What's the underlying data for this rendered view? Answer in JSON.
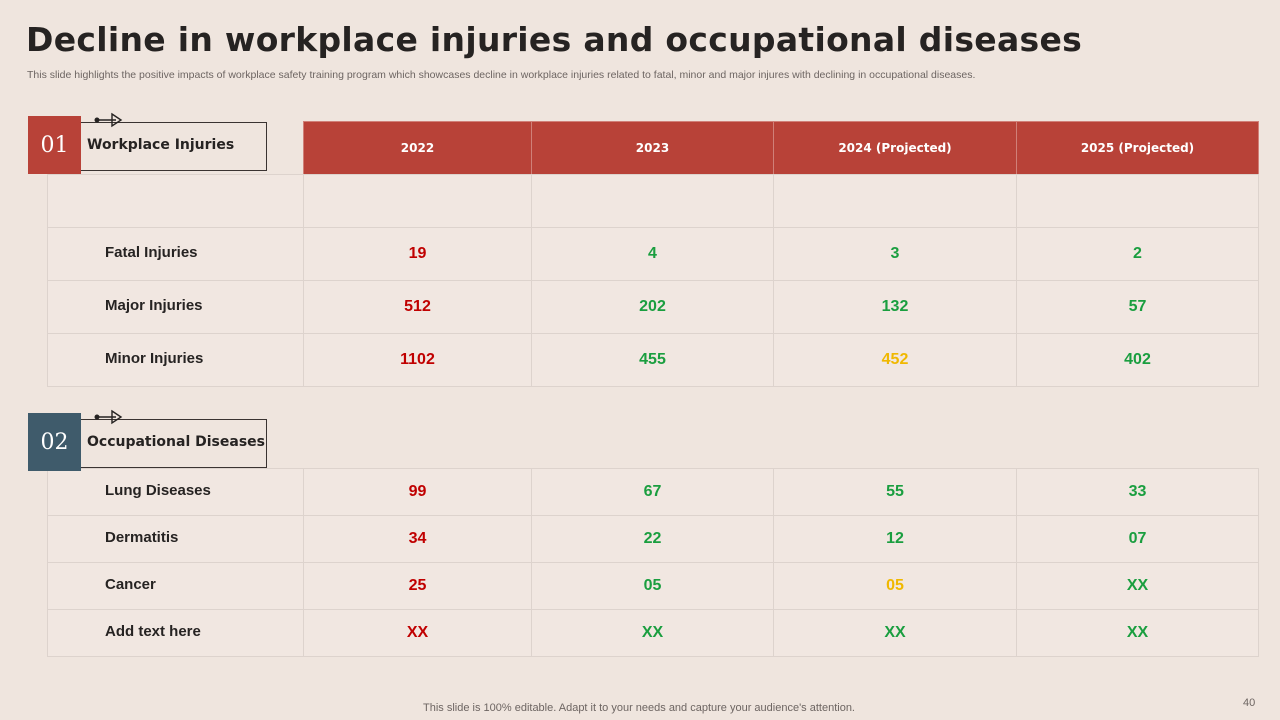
{
  "header": {
    "title": "Decline in workplace injuries and occupational diseases",
    "subtitle": "This slide highlights the positive impacts of workplace safety training program which showcases decline in workplace injuries related to fatal, minor and major injures with declining in occupational diseases."
  },
  "sections": [
    {
      "number": "01",
      "label": "Workplace Injuries",
      "badge_color": "#b84238",
      "columns": [
        "2022",
        "2023",
        "2024 (Projected)",
        "2025 (Projected)"
      ],
      "rows": [
        {
          "name": "Fatal Injuries",
          "cells": [
            "19",
            "4",
            "3",
            "2"
          ],
          "colors": [
            "#c00000",
            "#1a9e3f",
            "#1a9e3f",
            "#1a9e3f"
          ]
        },
        {
          "name": "Major Injuries",
          "cells": [
            "512",
            "202",
            "132",
            "57"
          ],
          "colors": [
            "#c00000",
            "#1a9e3f",
            "#1a9e3f",
            "#1a9e3f"
          ]
        },
        {
          "name": "Minor Injuries",
          "cells": [
            "1102",
            "455",
            "452",
            "402"
          ],
          "colors": [
            "#c00000",
            "#1a9e3f",
            "#f0b800",
            "#1a9e3f"
          ]
        }
      ]
    },
    {
      "number": "02",
      "label": "Occupational Diseases",
      "badge_color": "#3f5b6b",
      "rows": [
        {
          "name": "Lung Diseases",
          "cells": [
            "99",
            "67",
            "55",
            "33"
          ],
          "colors": [
            "#c00000",
            "#1a9e3f",
            "#1a9e3f",
            "#1a9e3f"
          ]
        },
        {
          "name": "Dermatitis",
          "cells": [
            "34",
            "22",
            "12",
            "07"
          ],
          "colors": [
            "#c00000",
            "#1a9e3f",
            "#1a9e3f",
            "#1a9e3f"
          ]
        },
        {
          "name": "Cancer",
          "cells": [
            "25",
            "05",
            "05",
            "XX"
          ],
          "colors": [
            "#c00000",
            "#1a9e3f",
            "#f0b800",
            "#1a9e3f"
          ]
        },
        {
          "name": "Add  text here",
          "cells": [
            "XX",
            "XX",
            "XX",
            "XX"
          ],
          "colors": [
            "#c00000",
            "#1a9e3f",
            "#1a9e3f",
            "#1a9e3f"
          ]
        }
      ]
    }
  ],
  "footer": {
    "note": "This slide is 100% editable. Adapt it to your needs and capture your audience's attention.",
    "page": 40
  }
}
